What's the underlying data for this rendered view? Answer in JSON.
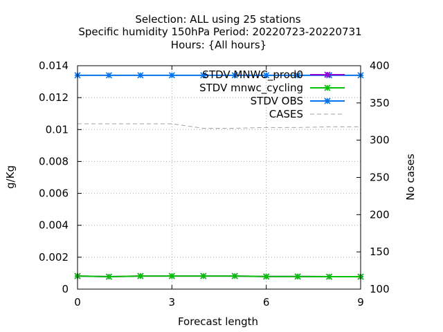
{
  "chart_data": {
    "type": "line",
    "title_lines": [
      "Selection: ALL using    25 stations",
      "Specific humidity 150hPa   Period: 20220723-20220731",
      "Hours: {All hours}"
    ],
    "xlabel": "Forecast length",
    "ylabel": "g/Kg",
    "y2label": "No cases",
    "xlim": [
      0,
      9
    ],
    "ylim": [
      0,
      0.014
    ],
    "y2lim": [
      100,
      400
    ],
    "xticks": [
      0,
      3,
      6,
      9
    ],
    "yticks": [
      "0",
      "0.002",
      "0.004",
      "0.006",
      "0.008",
      "0.01",
      "0.012",
      "0.014"
    ],
    "yticks_values": [
      0,
      0.002,
      0.004,
      0.006,
      0.008,
      0.01,
      0.012,
      0.014
    ],
    "y2ticks": [
      100,
      150,
      200,
      250,
      300,
      350,
      400
    ],
    "grid": true,
    "legend_position": "top-right",
    "x": [
      0,
      1,
      2,
      3,
      4,
      5,
      6,
      7,
      8,
      9
    ],
    "series": [
      {
        "name": "STDV MNWC_prod0",
        "axis": "y",
        "color": "#9400d3",
        "style": "solid",
        "values": [
          0.00082,
          0.00078,
          0.00082,
          0.00082,
          0.00082,
          0.00082,
          0.00079,
          0.00079,
          0.00078,
          0.00078
        ]
      },
      {
        "name": "STDV mnwc_cycling",
        "axis": "y",
        "color": "#00c000",
        "style": "solid",
        "values": [
          0.00082,
          0.00078,
          0.00082,
          0.00082,
          0.00082,
          0.00082,
          0.00079,
          0.00079,
          0.00078,
          0.00078
        ]
      },
      {
        "name": "STDV OBS",
        "axis": "y",
        "color": "#0072f0",
        "style": "solid",
        "values": [
          0.0134,
          0.0134,
          0.0134,
          0.0134,
          0.0134,
          0.0134,
          0.0134,
          0.0134,
          0.0134,
          0.0134
        ]
      },
      {
        "name": "CASES",
        "axis": "y2",
        "color": "#a0a0a0",
        "style": "dashed",
        "values": [
          322,
          322,
          322,
          322,
          316,
          316,
          317,
          317,
          318,
          318
        ]
      }
    ]
  }
}
